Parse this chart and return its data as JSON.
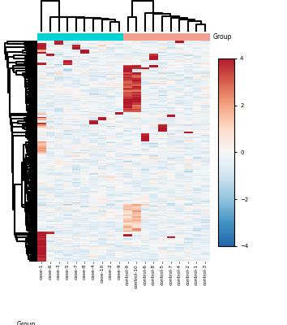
{
  "n_genes": 200,
  "n_samples_case": 10,
  "n_samples_control": 10,
  "case_labels": [
    "case-1",
    "case-2",
    "case-3",
    "case-4",
    "case-5",
    "case-6",
    "case-7",
    "case-8",
    "case-9",
    "case-10"
  ],
  "control_labels": [
    "control-1",
    "control-2",
    "control-3",
    "control-4",
    "control-5",
    "control-6",
    "control-7",
    "control-8",
    "control-9",
    "control-10"
  ],
  "case_color": "#00d4d4",
  "control_color": "#f4a090",
  "colorbar_label": "Group",
  "colorbar_ticks": [
    4,
    2,
    0,
    -2,
    -4
  ],
  "vmin": -4,
  "vmax": 4,
  "random_seed": 42,
  "cmap_colors": [
    "#2166ac",
    "#4393c3",
    "#92c5de",
    "#d1e5f0",
    "#f7f7f7",
    "#fddbc7",
    "#f4a582",
    "#d6604d",
    "#b2182b"
  ]
}
